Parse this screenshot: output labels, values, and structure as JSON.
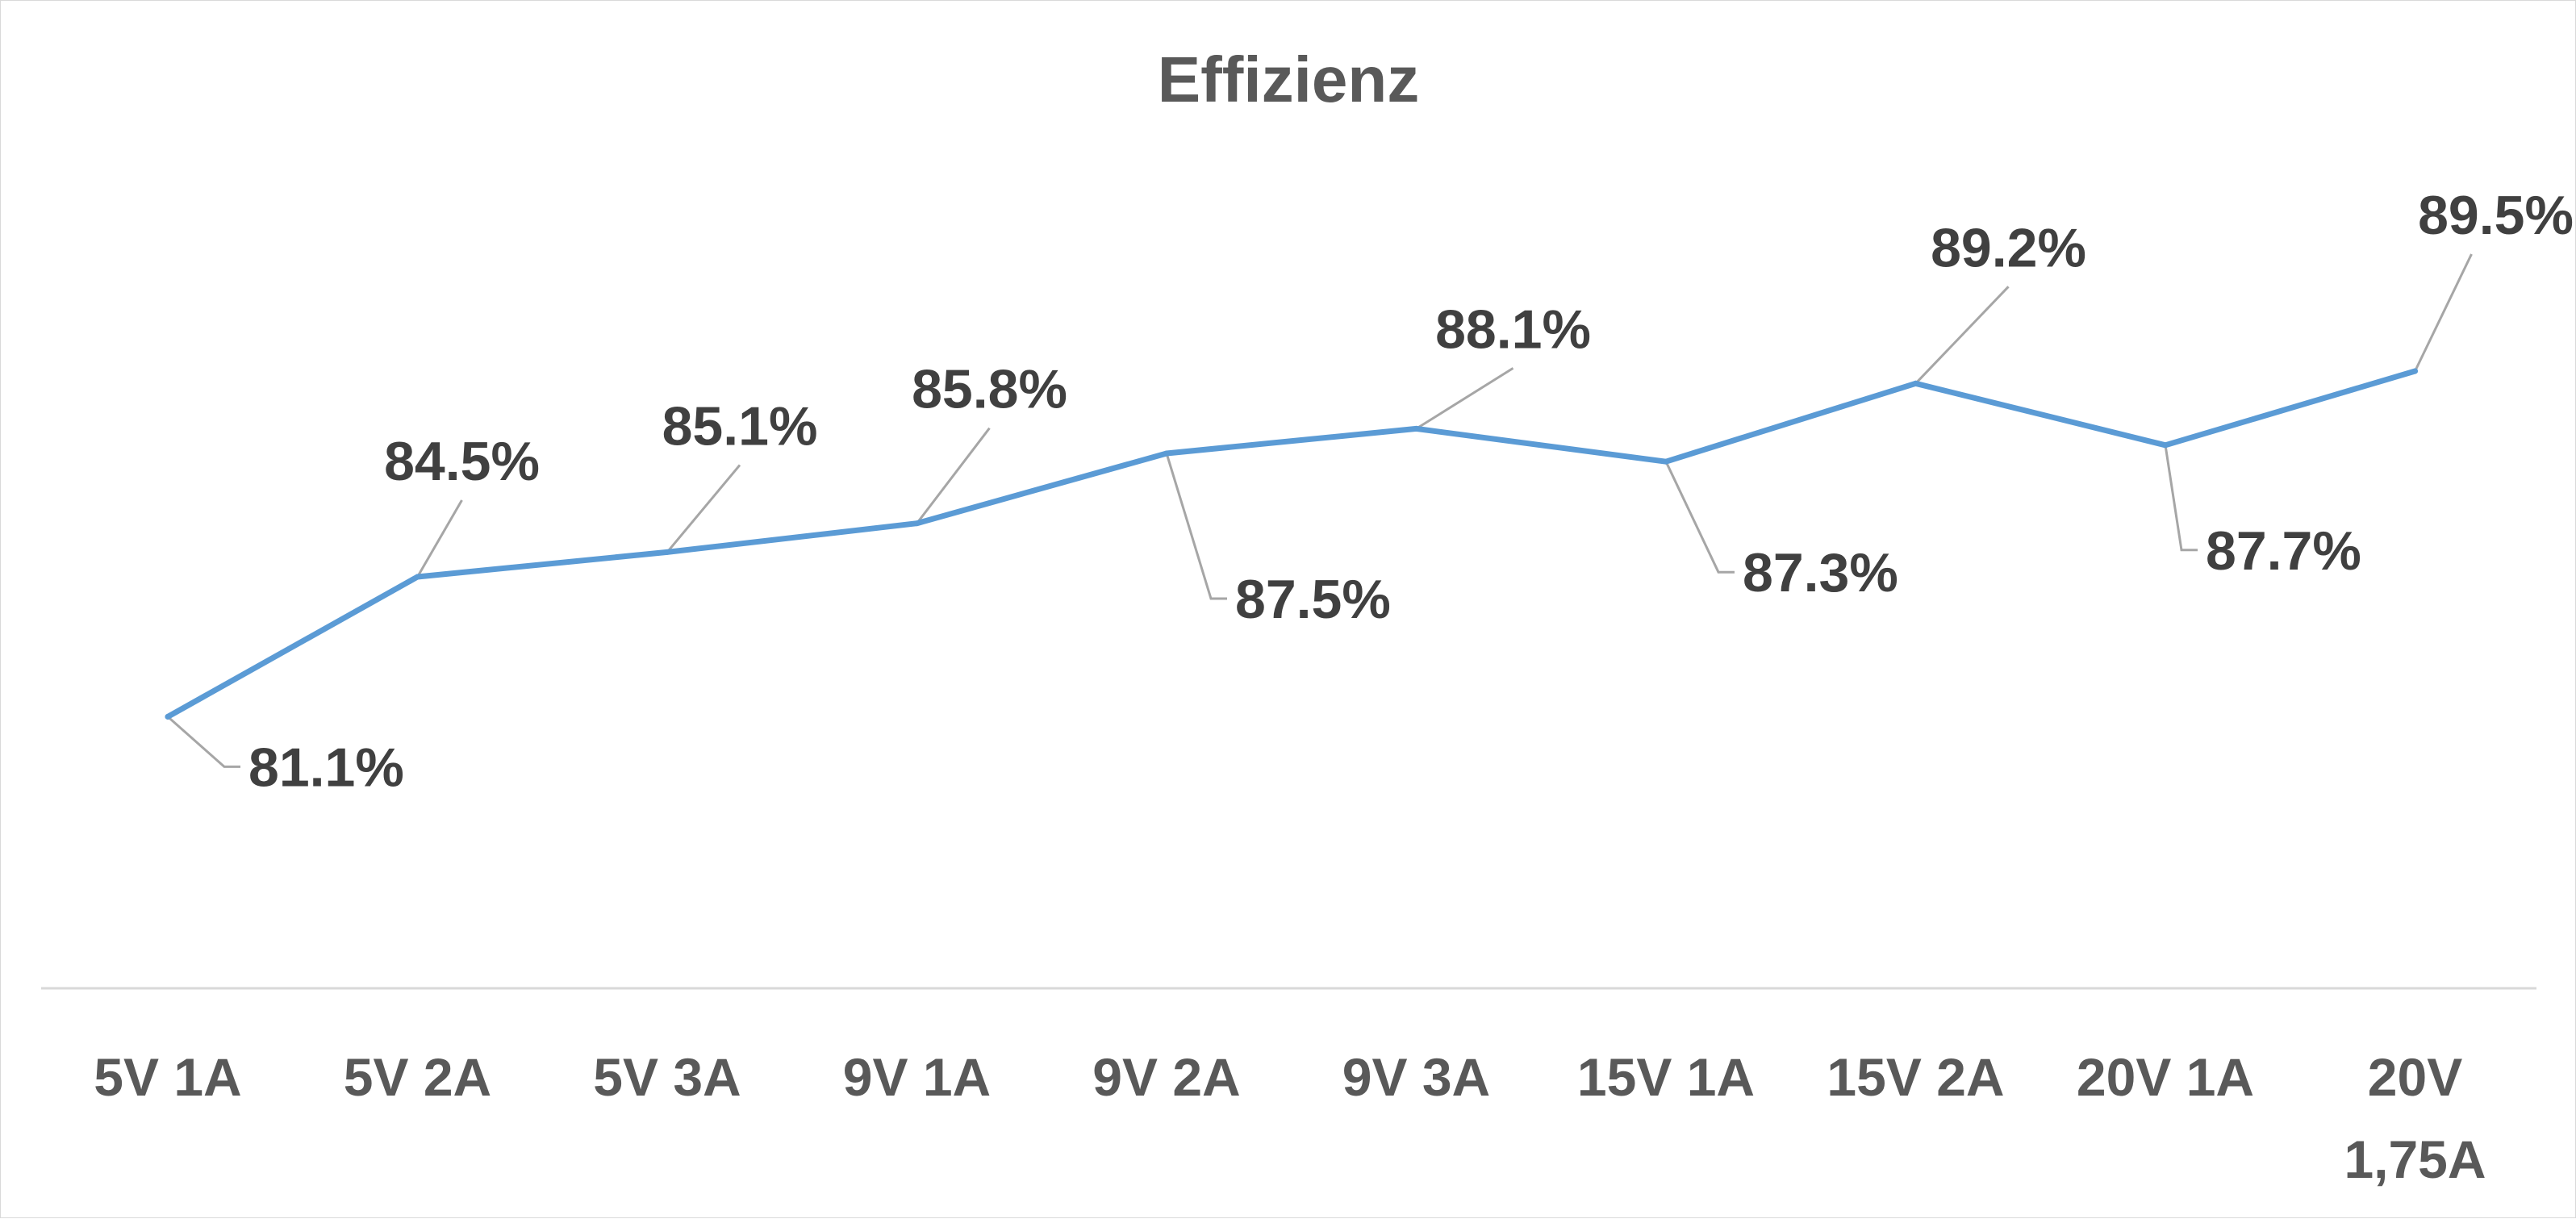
{
  "chart_data": {
    "type": "line",
    "title": "Effizienz",
    "xlabel": "",
    "ylabel": "",
    "categories": [
      "5V 1A",
      "5V 2A",
      "5V 3A",
      "9V 1A",
      "9V 2A",
      "9V 3A",
      "15V 1A",
      "15V 2A",
      "20V 1A",
      "20V 1,75A"
    ],
    "series": [
      {
        "values": [
          81.1,
          84.5,
          85.1,
          85.8,
          87.5,
          88.1,
          87.3,
          89.2,
          87.7,
          89.5
        ],
        "data_labels": [
          "81.1%",
          "84.5%",
          "85.1%",
          "85.8%",
          "87.5%",
          "88.1%",
          "87.3%",
          "89.2%",
          "87.7%",
          "89.5%"
        ]
      }
    ],
    "ylim": [
      74.5,
      98.5
    ],
    "grid": false,
    "legend": "none",
    "colors": {
      "series": "#5b9bd5",
      "leader": "#a6a6a6",
      "axis": "#d9d9d9",
      "text": "#595959",
      "data_label": "#404040"
    }
  }
}
